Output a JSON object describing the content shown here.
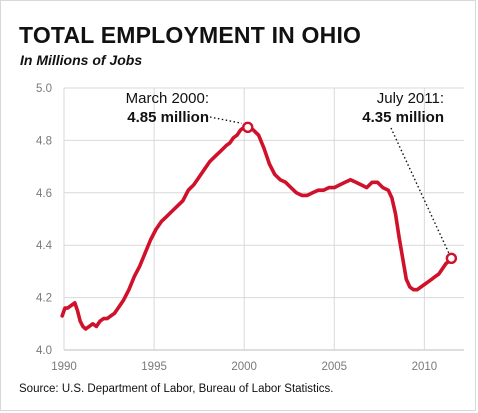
{
  "title": "TOTAL EMPLOYMENT IN OHIO",
  "subtitle": "In Millions of Jobs",
  "source": "Source: U.S. Department of Labor, Bureau of Labor Statistics.",
  "colors": {
    "line": "#d0112b",
    "grid": "#d9d9d9",
    "text": "#111111",
    "ticks": "#7a7a7a"
  },
  "chart_data": {
    "type": "line",
    "title": "TOTAL EMPLOYMENT IN OHIO",
    "subtitle": "In Millions of Jobs",
    "xlabel": "",
    "ylabel": "",
    "xlim": [
      1990,
      2012.2
    ],
    "ylim": [
      4.0,
      5.0
    ],
    "xticks": [
      "1990",
      "1995",
      "2000",
      "2005",
      "2010"
    ],
    "yticks": [
      "4.0",
      "4.2",
      "4.4",
      "4.6",
      "4.8",
      "5.0"
    ],
    "grid": true,
    "series": [
      {
        "x": [
          1989.9,
          1990.05,
          1990.2,
          1990.4,
          1990.6,
          1990.75,
          1990.9,
          1991.05,
          1991.2,
          1991.4,
          1991.6,
          1991.8,
          1992.0,
          1992.2,
          1992.4,
          1992.6,
          1992.8,
          1993.0,
          1993.3,
          1993.6,
          1993.9,
          1994.2,
          1994.5,
          1994.8,
          1995.1,
          1995.4,
          1995.7,
          1996.0,
          1996.3,
          1996.6,
          1996.9,
          1997.2,
          1997.5,
          1997.8,
          1998.1,
          1998.4,
          1998.7,
          1999.0,
          1999.2,
          1999.4,
          1999.6,
          1999.8,
          2000.0,
          2000.2,
          2000.5,
          2000.8,
          2001.1,
          2001.4,
          2001.7,
          2002.0,
          2002.3,
          2002.6,
          2002.9,
          2003.2,
          2003.5,
          2003.8,
          2004.1,
          2004.4,
          2004.7,
          2005.0,
          2005.3,
          2005.6,
          2005.9,
          2006.2,
          2006.5,
          2006.8,
          2007.1,
          2007.4,
          2007.7,
          2008.0,
          2008.2,
          2008.4,
          2008.6,
          2008.8,
          2009.0,
          2009.2,
          2009.4,
          2009.6,
          2009.8,
          2010.0,
          2010.2,
          2010.4,
          2010.6,
          2010.8,
          2011.0,
          2011.2,
          2011.4,
          2011.5
        ],
        "values": [
          4.13,
          4.16,
          4.16,
          4.17,
          4.18,
          4.15,
          4.11,
          4.09,
          4.08,
          4.09,
          4.1,
          4.09,
          4.11,
          4.12,
          4.12,
          4.13,
          4.14,
          4.16,
          4.19,
          4.23,
          4.28,
          4.32,
          4.37,
          4.42,
          4.46,
          4.49,
          4.51,
          4.53,
          4.55,
          4.57,
          4.61,
          4.63,
          4.66,
          4.69,
          4.72,
          4.74,
          4.76,
          4.78,
          4.79,
          4.81,
          4.82,
          4.84,
          4.85,
          4.85,
          4.84,
          4.82,
          4.77,
          4.71,
          4.67,
          4.65,
          4.64,
          4.62,
          4.6,
          4.59,
          4.59,
          4.6,
          4.61,
          4.61,
          4.62,
          4.62,
          4.63,
          4.64,
          4.65,
          4.64,
          4.63,
          4.62,
          4.64,
          4.64,
          4.62,
          4.61,
          4.58,
          4.52,
          4.43,
          4.35,
          4.27,
          4.24,
          4.23,
          4.23,
          4.24,
          4.25,
          4.26,
          4.27,
          4.28,
          4.29,
          4.31,
          4.33,
          4.34,
          4.35
        ]
      }
    ],
    "annotations": [
      {
        "line1": "March 2000:",
        "line2": "4.85 million",
        "x": 2000.2,
        "y": 4.85
      },
      {
        "line1": "July 2011:",
        "line2": "4.35 million",
        "x": 2011.5,
        "y": 4.35
      }
    ]
  }
}
